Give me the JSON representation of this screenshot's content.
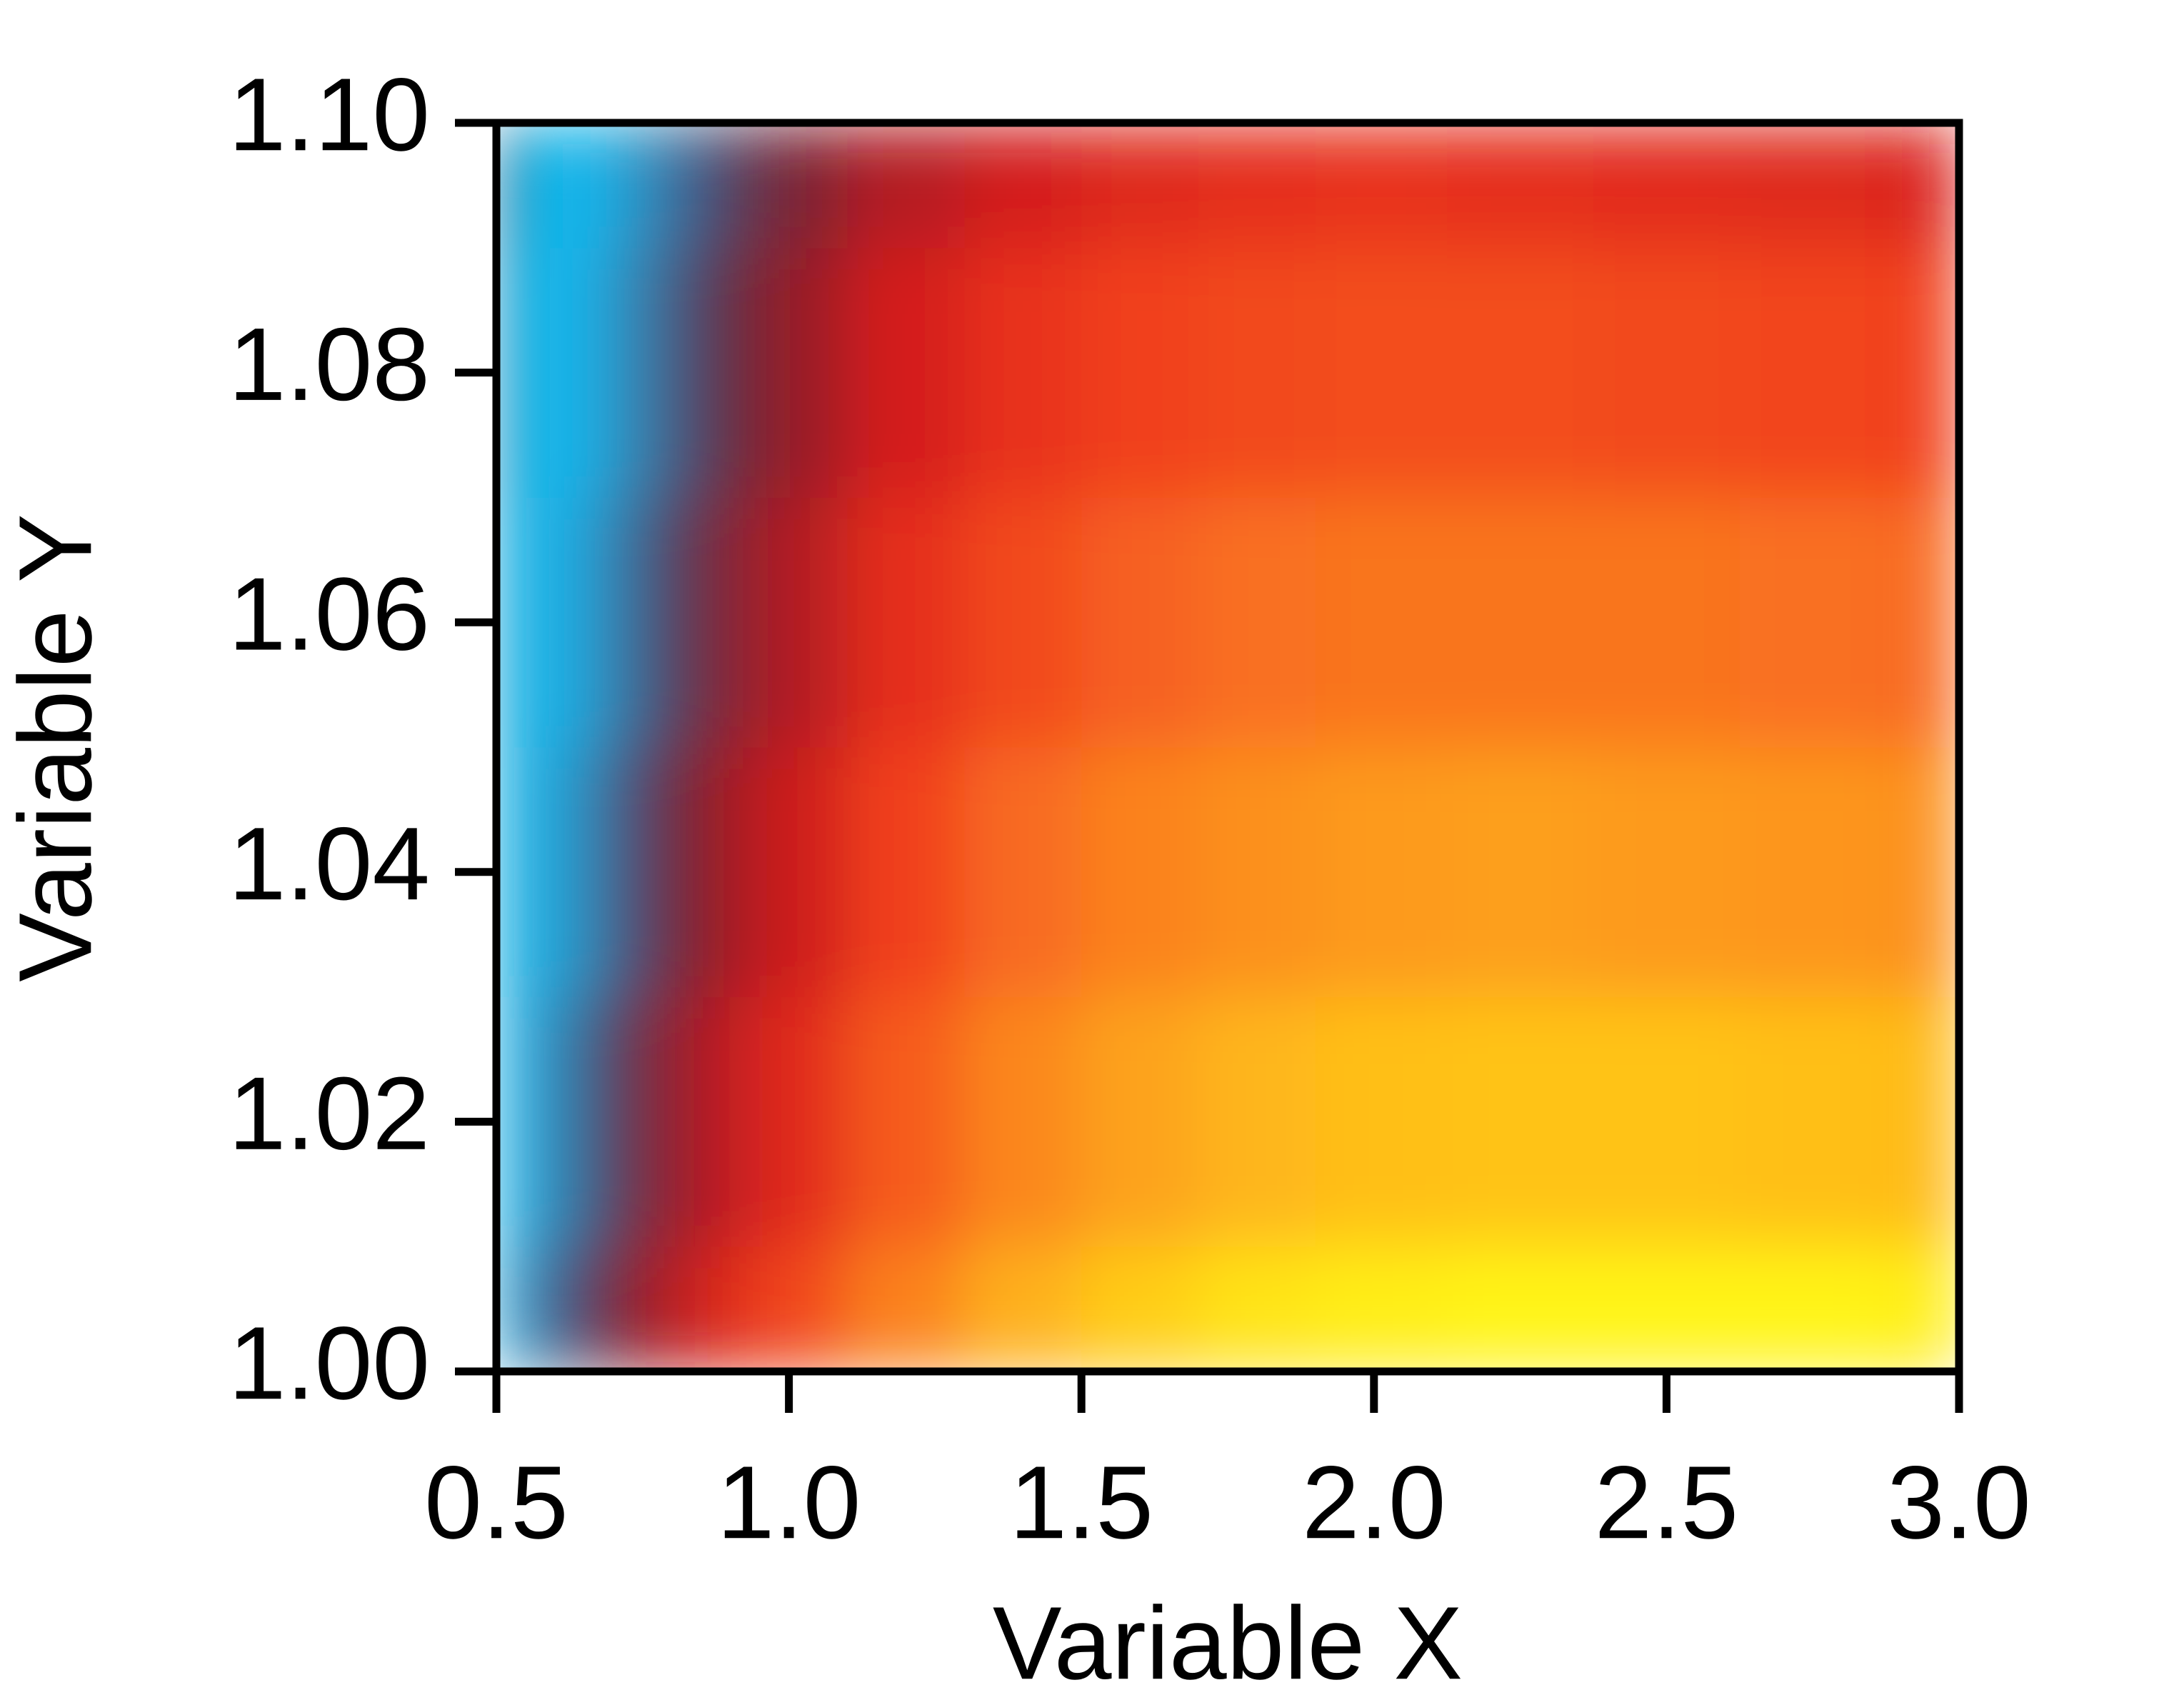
{
  "chart_data": {
    "type": "contour",
    "x_label": "Variable X",
    "y_label": "Variable Y",
    "x": [
      0.5,
      0.6,
      0.7,
      0.8,
      0.9,
      1.0,
      1.2,
      1.4,
      1.6,
      1.8,
      2.0,
      2.25,
      2.5,
      2.75,
      3.0
    ],
    "y": [
      1.0,
      1.02,
      1.04,
      1.06,
      1.08,
      1.1
    ],
    "z": [
      [
        0.12,
        0.22,
        0.33,
        0.45,
        0.55,
        0.63,
        0.75,
        0.85,
        0.91,
        0.95,
        0.97,
        0.98,
        0.98,
        0.98,
        0.97
      ],
      [
        0.1,
        0.17,
        0.27,
        0.38,
        0.47,
        0.55,
        0.67,
        0.76,
        0.82,
        0.86,
        0.88,
        0.89,
        0.89,
        0.88,
        0.87
      ],
      [
        0.09,
        0.13,
        0.22,
        0.32,
        0.41,
        0.49,
        0.61,
        0.7,
        0.75,
        0.78,
        0.8,
        0.81,
        0.8,
        0.79,
        0.78
      ],
      [
        0.08,
        0.11,
        0.18,
        0.27,
        0.36,
        0.44,
        0.56,
        0.63,
        0.68,
        0.71,
        0.72,
        0.72,
        0.72,
        0.71,
        0.7
      ],
      [
        0.06,
        0.1,
        0.15,
        0.23,
        0.31,
        0.39,
        0.5,
        0.57,
        0.61,
        0.63,
        0.64,
        0.64,
        0.63,
        0.62,
        0.61
      ],
      [
        0.03,
        0.1,
        0.13,
        0.2,
        0.27,
        0.35,
        0.44,
        0.5,
        0.54,
        0.56,
        0.57,
        0.56,
        0.55,
        0.54,
        0.52
      ]
    ],
    "colormap": [
      "#0a2a50",
      "#10bff5",
      "#3a70a0",
      "#5a2a40",
      "#a01c25",
      "#d41e1e",
      "#f03a1e",
      "#f86a20",
      "#fd9a1c",
      "#ffc818",
      "#ffff10"
    ],
    "xlim": [
      0.5,
      3.0
    ],
    "xticks": [
      0.5,
      {
        "value": 1,
        "label": "1.0"
      },
      1.5,
      {
        "value": 2,
        "label": "2.0"
      },
      2.5,
      {
        "value": 3,
        "label": "3.0"
      }
    ],
    "ylim": [
      1.0,
      1.1
    ],
    "yticks": [
      {
        "value": 1,
        "label": "1.00"
      },
      1.02,
      1.04,
      1.06,
      1.08,
      {
        "value": 1.1,
        "label": "1.10"
      }
    ]
  }
}
